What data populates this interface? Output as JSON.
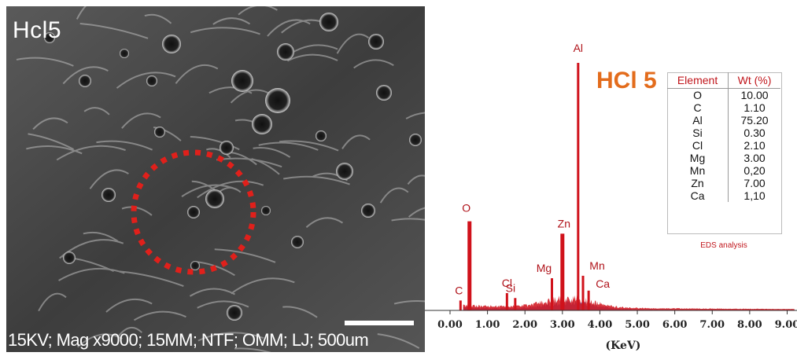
{
  "sem": {
    "label": "Hcl5",
    "info": "15KV; Mag x9000; 15MM; NTF; OMM; LJ; 500um"
  },
  "title": "HCl 5",
  "table": {
    "headers": [
      "Element",
      "Wt (%)"
    ],
    "rows": [
      [
        "O",
        "10.00"
      ],
      [
        "C",
        "1.10"
      ],
      [
        "Al",
        "75.20"
      ],
      [
        "Si",
        "0.30"
      ],
      [
        "Cl",
        "2.10"
      ],
      [
        "Mg",
        "3.00"
      ],
      [
        "Mn",
        "0,20"
      ],
      [
        "Zn",
        "7.00"
      ],
      [
        "Ca",
        "1,10"
      ]
    ],
    "caption": "EDS analysis"
  },
  "colors": {
    "spectrum": "#d0121b",
    "title": "#e36c1c",
    "background_fill": "#4050b0"
  },
  "chart_data": {
    "type": "line",
    "xlabel": "(KeV)",
    "ylabel": "",
    "xlim": [
      0,
      9.2
    ],
    "ylim": [
      0,
      100
    ],
    "x_ticks": [
      "0.00",
      "1.00",
      "2.00",
      "3.00",
      "4.00",
      "5.00",
      "6.00",
      "7.00",
      "8.00",
      "9.00"
    ],
    "grid": false,
    "peaks": [
      {
        "element": "O",
        "x": 0.52,
        "y": 36
      },
      {
        "element": "C",
        "x": 0.28,
        "y": 4
      },
      {
        "element": "Cl",
        "x": 1.52,
        "y": 7
      },
      {
        "element": "Si",
        "x": 1.74,
        "y": 5
      },
      {
        "element": "Mg",
        "x": 2.72,
        "y": 13
      },
      {
        "element": "Zn",
        "x": 3.0,
        "y": 31
      },
      {
        "element": "Al",
        "x": 3.42,
        "y": 100
      },
      {
        "element": "Mn",
        "x": 3.55,
        "y": 14
      },
      {
        "element": "Ca",
        "x": 3.7,
        "y": 8
      }
    ]
  }
}
